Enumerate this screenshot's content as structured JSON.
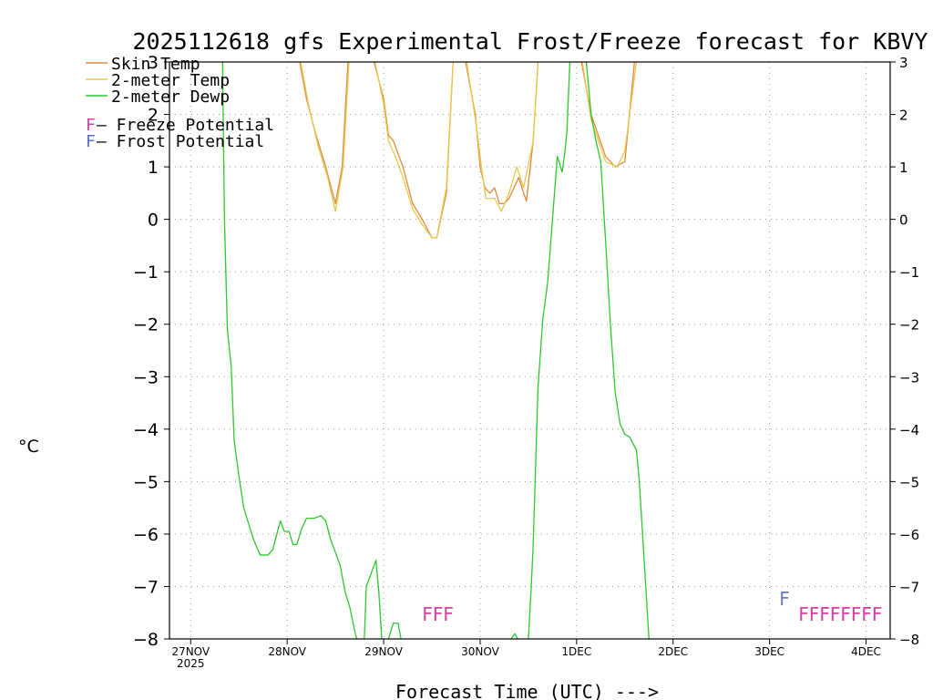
{
  "chart_data": {
    "type": "line",
    "title": "2025112618 gfs Experimental Frost/Freeze forecast for KBVY",
    "xlabel": "Forecast Time (UTC) --->",
    "ylabel": "°C",
    "ylim": [
      -8,
      3
    ],
    "xlim": [
      -0.22,
      7.25
    ],
    "yticks": [
      -8,
      -7,
      -6,
      -5,
      -4,
      -3,
      -2,
      -1,
      0,
      1,
      2,
      3
    ],
    "ytick_labels": [
      "-8",
      "-7",
      "-6",
      "-5",
      "-4",
      "-3",
      "-2",
      "-1",
      "0",
      "1",
      "2",
      "3"
    ],
    "xtick_labels": [
      "27NOV",
      "28NOV",
      "29NOV",
      "30NOV",
      "1DEC",
      "2DEC",
      "3DEC",
      "4DEC"
    ],
    "xtick_year": "2025",
    "grid": true,
    "legend_position": "top-left",
    "series": [
      {
        "name": "Skin Temp",
        "color": "#e08a3c",
        "points": [
          [
            1.13,
            3.0
          ],
          [
            1.2,
            2.3
          ],
          [
            1.3,
            1.6
          ],
          [
            1.4,
            1.0
          ],
          [
            1.5,
            0.3
          ],
          [
            1.57,
            1.0
          ],
          [
            1.63,
            3.0
          ],
          [
            1.9,
            3.0
          ],
          [
            2.0,
            2.3
          ],
          [
            2.05,
            1.6
          ],
          [
            2.1,
            1.5
          ],
          [
            2.2,
            1.0
          ],
          [
            2.3,
            0.3
          ],
          [
            2.4,
            0.0
          ],
          [
            2.5,
            -0.35
          ],
          [
            2.55,
            -0.35
          ],
          [
            2.65,
            0.5
          ],
          [
            2.72,
            3.0
          ],
          [
            2.85,
            3.0
          ],
          [
            2.95,
            2.0
          ],
          [
            3.0,
            1.0
          ],
          [
            3.05,
            0.6
          ],
          [
            3.1,
            0.5
          ],
          [
            3.15,
            0.6
          ],
          [
            3.2,
            0.3
          ],
          [
            3.25,
            0.3
          ],
          [
            3.3,
            0.4
          ],
          [
            3.4,
            0.8
          ],
          [
            3.45,
            0.5
          ],
          [
            3.48,
            0.35
          ],
          [
            3.55,
            1.5
          ],
          [
            3.6,
            3.0
          ],
          [
            4.05,
            3.0
          ],
          [
            4.15,
            2.0
          ],
          [
            4.3,
            1.2
          ],
          [
            4.4,
            1.0
          ],
          [
            4.5,
            1.1
          ],
          [
            4.6,
            3.0
          ]
        ]
      },
      {
        "name": "2-meter Temp",
        "color": "#e8c84c",
        "points": [
          [
            1.14,
            3.0
          ],
          [
            1.22,
            2.2
          ],
          [
            1.32,
            1.4
          ],
          [
            1.42,
            0.8
          ],
          [
            1.5,
            0.15
          ],
          [
            1.58,
            1.0
          ],
          [
            1.64,
            3.0
          ],
          [
            1.91,
            3.0
          ],
          [
            2.0,
            2.2
          ],
          [
            2.05,
            1.5
          ],
          [
            2.12,
            1.2
          ],
          [
            2.2,
            0.8
          ],
          [
            2.3,
            0.2
          ],
          [
            2.4,
            -0.1
          ],
          [
            2.5,
            -0.35
          ],
          [
            2.55,
            -0.35
          ],
          [
            2.65,
            0.6
          ],
          [
            2.72,
            3.0
          ],
          [
            2.86,
            3.0
          ],
          [
            2.96,
            1.8
          ],
          [
            3.02,
            0.9
          ],
          [
            3.06,
            0.4
          ],
          [
            3.1,
            0.4
          ],
          [
            3.15,
            0.4
          ],
          [
            3.22,
            0.15
          ],
          [
            3.3,
            0.5
          ],
          [
            3.38,
            1.0
          ],
          [
            3.45,
            0.6
          ],
          [
            3.55,
            1.5
          ],
          [
            3.6,
            3.0
          ],
          [
            4.06,
            3.0
          ],
          [
            4.15,
            1.9
          ],
          [
            4.3,
            1.1
          ],
          [
            4.42,
            1.0
          ],
          [
            4.5,
            1.3
          ],
          [
            4.62,
            3.0
          ]
        ]
      },
      {
        "name": "2-meter Dewp",
        "color": "#2ec82e",
        "points": [
          [
            0.33,
            3.0
          ],
          [
            0.35,
            0.0
          ],
          [
            0.38,
            -2.1
          ],
          [
            0.42,
            -2.8
          ],
          [
            0.45,
            -4.2
          ],
          [
            0.5,
            -4.9
          ],
          [
            0.55,
            -5.5
          ],
          [
            0.65,
            -6.1
          ],
          [
            0.72,
            -6.4
          ],
          [
            0.8,
            -6.4
          ],
          [
            0.85,
            -6.3
          ],
          [
            0.9,
            -5.95
          ],
          [
            0.93,
            -5.75
          ],
          [
            0.97,
            -5.95
          ],
          [
            1.02,
            -5.95
          ],
          [
            1.06,
            -6.2
          ],
          [
            1.1,
            -6.2
          ],
          [
            1.15,
            -5.9
          ],
          [
            1.2,
            -5.7
          ],
          [
            1.28,
            -5.7
          ],
          [
            1.35,
            -5.65
          ],
          [
            1.4,
            -5.75
          ],
          [
            1.45,
            -6.1
          ],
          [
            1.5,
            -6.35
          ],
          [
            1.55,
            -6.6
          ],
          [
            1.6,
            -7.1
          ],
          [
            1.65,
            -7.4
          ],
          [
            1.7,
            -7.85
          ],
          [
            1.72,
            -8.0
          ],
          [
            1.8,
            -8.0
          ],
          [
            1.82,
            -7.0
          ],
          [
            1.88,
            -6.7
          ],
          [
            1.92,
            -6.5
          ],
          [
            1.95,
            -7.1
          ],
          [
            1.98,
            -8.0
          ],
          [
            2.05,
            -8.0
          ],
          [
            2.1,
            -7.7
          ],
          [
            2.15,
            -7.7
          ],
          [
            2.18,
            -8.0
          ],
          [
            3.32,
            -8.0
          ],
          [
            3.36,
            -7.9
          ],
          [
            3.39,
            -8.0
          ],
          [
            3.5,
            -8.0
          ],
          [
            3.53,
            -7.0
          ],
          [
            3.55,
            -6.2
          ],
          [
            3.6,
            -3.2
          ],
          [
            3.65,
            -1.9
          ],
          [
            3.7,
            -1.2
          ],
          [
            3.75,
            0.0
          ],
          [
            3.8,
            1.2
          ],
          [
            3.85,
            0.9
          ],
          [
            3.88,
            1.3
          ],
          [
            3.9,
            1.7
          ],
          [
            3.93,
            3.0
          ],
          [
            4.1,
            3.0
          ],
          [
            4.15,
            2.0
          ],
          [
            4.2,
            1.5
          ],
          [
            4.25,
            1.1
          ],
          [
            4.3,
            -0.4
          ],
          [
            4.35,
            -2.0
          ],
          [
            4.4,
            -3.3
          ],
          [
            4.45,
            -3.9
          ],
          [
            4.5,
            -4.1
          ],
          [
            4.55,
            -4.15
          ],
          [
            4.62,
            -4.4
          ],
          [
            4.65,
            -5.0
          ],
          [
            4.7,
            -6.5
          ],
          [
            4.75,
            -8.0
          ]
        ]
      }
    ],
    "potential_legend": [
      {
        "symbol": "F",
        "label": " – Freeze Potential",
        "color": "#d040a0"
      },
      {
        "symbol": "F",
        "label": " – Frost Potential",
        "color": "#5a6ad8"
      }
    ],
    "flag_annotations": [
      {
        "text": "FFF",
        "x": 2.4,
        "y": -7.5,
        "color": "#d040a0"
      },
      {
        "text": "F",
        "x": 6.1,
        "y": -7.2,
        "color": "#6a78c8"
      },
      {
        "text": "FFFFFFFF",
        "x": 6.3,
        "y": -7.5,
        "color": "#d040a0"
      }
    ]
  }
}
